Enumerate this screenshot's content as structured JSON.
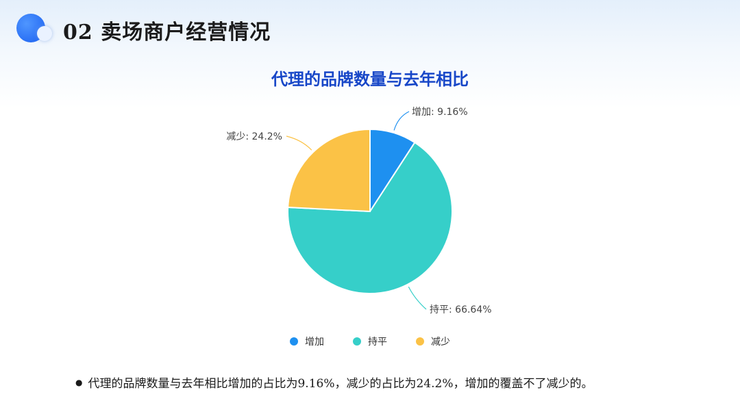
{
  "header": {
    "title": "02 卖场商户经营情况"
  },
  "colors": {
    "title": "#1847c8",
    "increase": "#1e90f0",
    "flat": "#36cfc9",
    "decrease": "#fbc246"
  },
  "chart_data": {
    "type": "pie",
    "title": "代理的品牌数量与去年相比",
    "slices": [
      {
        "name": "增加",
        "value": 9.16,
        "label": "增加: 9.16%",
        "color": "#1e90f0"
      },
      {
        "name": "持平",
        "value": 66.64,
        "label": "持平: 66.64%",
        "color": "#36cfc9"
      },
      {
        "name": "减少",
        "value": 24.2,
        "label": "减少: 24.2%",
        "color": "#fbc246"
      }
    ],
    "legend": [
      "增加",
      "持平",
      "减少"
    ],
    "legend_position": "bottom"
  },
  "note": {
    "bullet": "●",
    "text": "代理的品牌数量与去年相比增加的占比为9.16%，减少的占比为24.2%，增加的覆盖不了减少的。"
  }
}
